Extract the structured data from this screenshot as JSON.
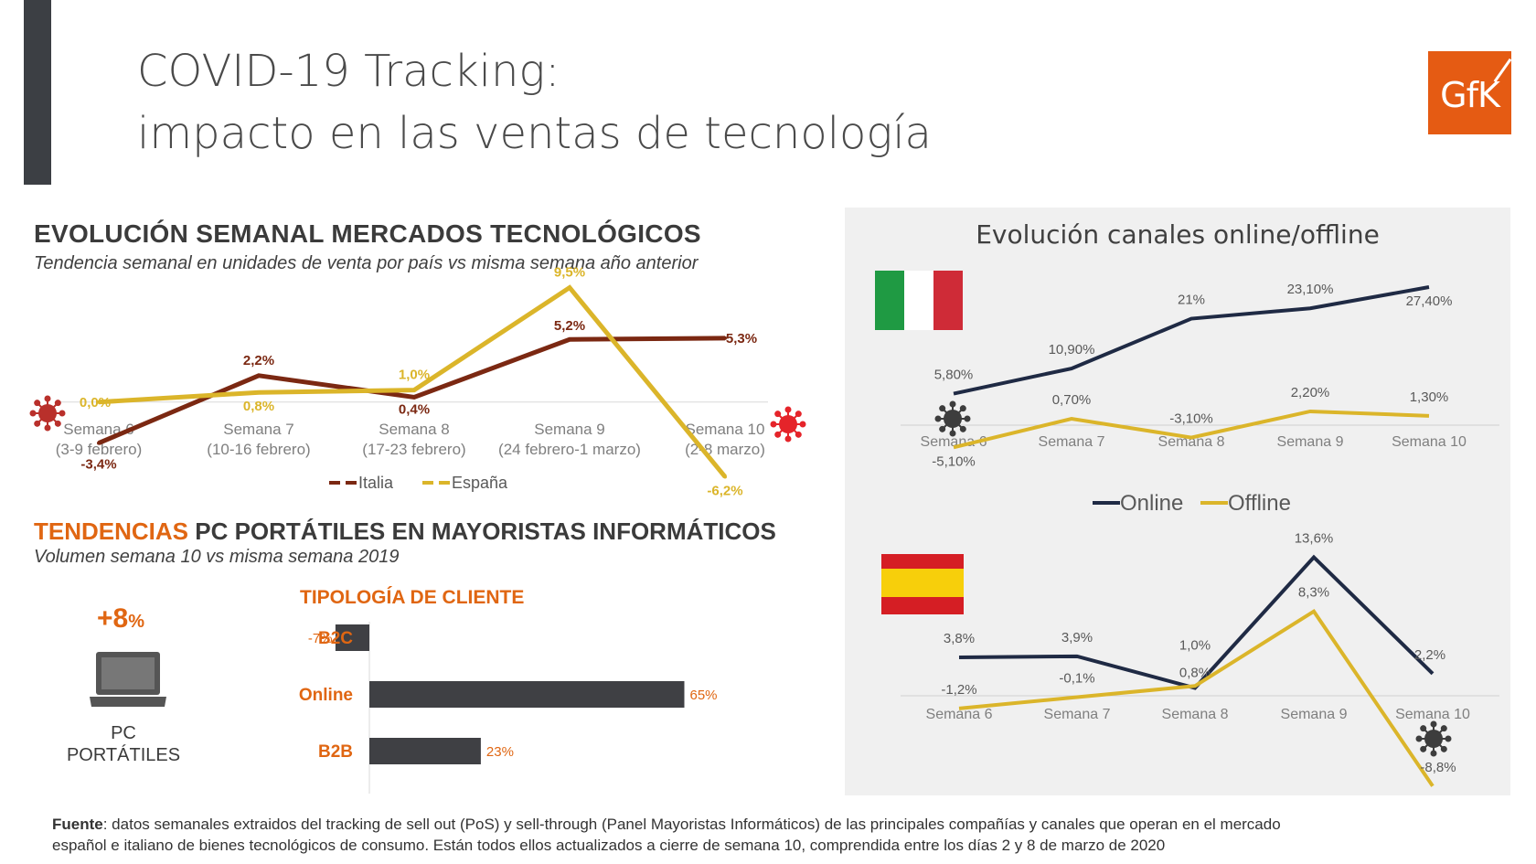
{
  "header": {
    "title_line1": "COVID-19 Tracking:",
    "title_line2": "impacto en las ventas de tecnología",
    "logo_text": "GfK"
  },
  "section1": {
    "title": "EVOLUCIÓN SEMANAL MERCADOS TECNOLÓGICOS",
    "subtitle": "Tendencia semanal en unidades de venta por país vs misma semana año anterior"
  },
  "section2": {
    "title_accent": "TENDENCIAS",
    "title_rest": " PC PORTÁTILES EN MAYORISTAS INFORMÁTICOS",
    "subtitle": "Volumen semana 10 vs misma semana 2019",
    "big_value": "+8",
    "big_unit": "%",
    "pc_label_line1": "PC",
    "pc_label_line2": "PORTÁTILES",
    "tipologia_title": "TIPOLOGÍA DE CLIENTE"
  },
  "right_panel": {
    "title": "Evolución canales online/offline"
  },
  "footer": {
    "bold": "Fuente",
    "text": ": datos semanales extraidos del tracking de sell out (PoS) y sell-through (Panel Mayoristas Informáticos) de las principales compañías y canales que operan en el mercado español e italiano de bienes tecnológicos de consumo. Están todos ellos actualizados a cierre de semana 10, comprendida entre los días 2 y 8 de marzo de 2020"
  },
  "chart_data": [
    {
      "type": "line",
      "id": "weekly-markets",
      "categories": [
        "Semana 6",
        "Semana 7",
        "Semana 8",
        "Semana 9",
        "Semana 10"
      ],
      "category_sublabels": [
        "(3-9 febrero)",
        "(10-16 febrero)",
        "(17-23 febrero)",
        "(24 febrero-1 marzo)",
        "(2-8 marzo)"
      ],
      "series": [
        {
          "name": "Italia",
          "color": "#7b2812",
          "values": [
            -3.4,
            2.2,
            0.4,
            5.2,
            5.3
          ],
          "labels": [
            "-3,4%",
            "2,2%",
            "0,4%",
            "5,2%",
            "5,3%"
          ]
        },
        {
          "name": "España",
          "color": "#dbb52a",
          "values": [
            0.0,
            0.8,
            1.0,
            9.5,
            -6.2
          ],
          "labels": [
            "0,0%",
            "0,8%",
            "1,0%",
            "9,5%",
            "-6,2%"
          ]
        }
      ],
      "ylim": [
        -7,
        10
      ],
      "legend": "bottom"
    },
    {
      "type": "bar",
      "id": "tipologia-cliente",
      "orientation": "horizontal",
      "categories": [
        "B2C",
        "Online",
        "B2B"
      ],
      "values": [
        -7,
        65,
        23
      ],
      "labels": [
        "-7%",
        "65%",
        "23%"
      ],
      "color": "#3f4044"
    },
    {
      "type": "line",
      "id": "italy-channels",
      "categories": [
        "Semana 6",
        "Semana 7",
        "Semana 8",
        "Semana 9",
        "Semana 10"
      ],
      "series": [
        {
          "name": "Online",
          "color": "#1f2a44",
          "values": [
            5.8,
            10.9,
            21,
            23.1,
            27.4
          ],
          "labels": [
            "5,80%",
            "10,90%",
            "21%",
            "23,10%",
            "27,40%"
          ]
        },
        {
          "name": "Offline",
          "color": "#dbb52a",
          "values": [
            -5.1,
            0.7,
            -3.1,
            2.2,
            1.3
          ],
          "labels": [
            "-5,10%",
            "0,70%",
            "-3,10%",
            "2,20%",
            "1,30%"
          ]
        }
      ],
      "ylim": [
        -8,
        30
      ],
      "legend": "bottom"
    },
    {
      "type": "line",
      "id": "spain-channels",
      "categories": [
        "Semana 6",
        "Semana 7",
        "Semana 8",
        "Semana 9",
        "Semana 10"
      ],
      "series": [
        {
          "name": "Online",
          "color": "#1f2a44",
          "values": [
            3.8,
            3.9,
            0.8,
            13.6,
            2.2
          ],
          "labels": [
            "3,8%",
            "3,9%",
            "0,8%",
            "13,6%",
            "2,2%"
          ]
        },
        {
          "name": "Offline",
          "color": "#dbb52a",
          "values": [
            -1.2,
            -0.1,
            1.0,
            8.3,
            -8.8
          ],
          "labels": [
            "-1,2%",
            "-0,1%",
            "1,0%",
            "8,3%",
            "-8,8%"
          ]
        }
      ],
      "ylim": [
        -9,
        14
      ]
    }
  ],
  "icons": [
    "laptop-icon",
    "italy-flag-icon",
    "spain-flag-icon",
    "virus-icon",
    "gfk-logo"
  ]
}
